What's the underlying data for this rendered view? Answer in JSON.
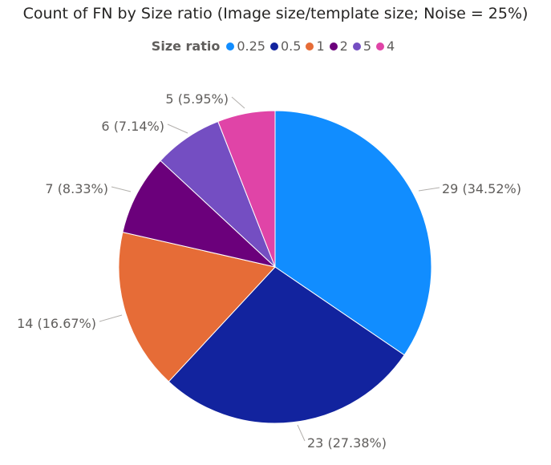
{
  "chart_data": {
    "type": "pie",
    "title": "Count of FN by Size ratio (Image size/template size; Noise = 25%)",
    "legend": {
      "title": "Size ratio",
      "position": "top-center"
    },
    "categories": [
      "0.25",
      "0.5",
      "1",
      "2",
      "5",
      "4"
    ],
    "values": [
      29,
      23,
      14,
      7,
      6,
      5
    ],
    "percentages": [
      "34.52%",
      "27.38%",
      "16.67%",
      "8.33%",
      "7.14%",
      "5.95%"
    ],
    "data_labels": [
      "29 (34.52%)",
      "23 (27.38%)",
      "14 (16.67%)",
      "7 (8.33%)",
      "6 (7.14%)",
      "5 (5.95%)"
    ],
    "colors": [
      "#118dff",
      "#12239e",
      "#e66c37",
      "#6b007b",
      "#744ec2",
      "#e044a7"
    ]
  }
}
